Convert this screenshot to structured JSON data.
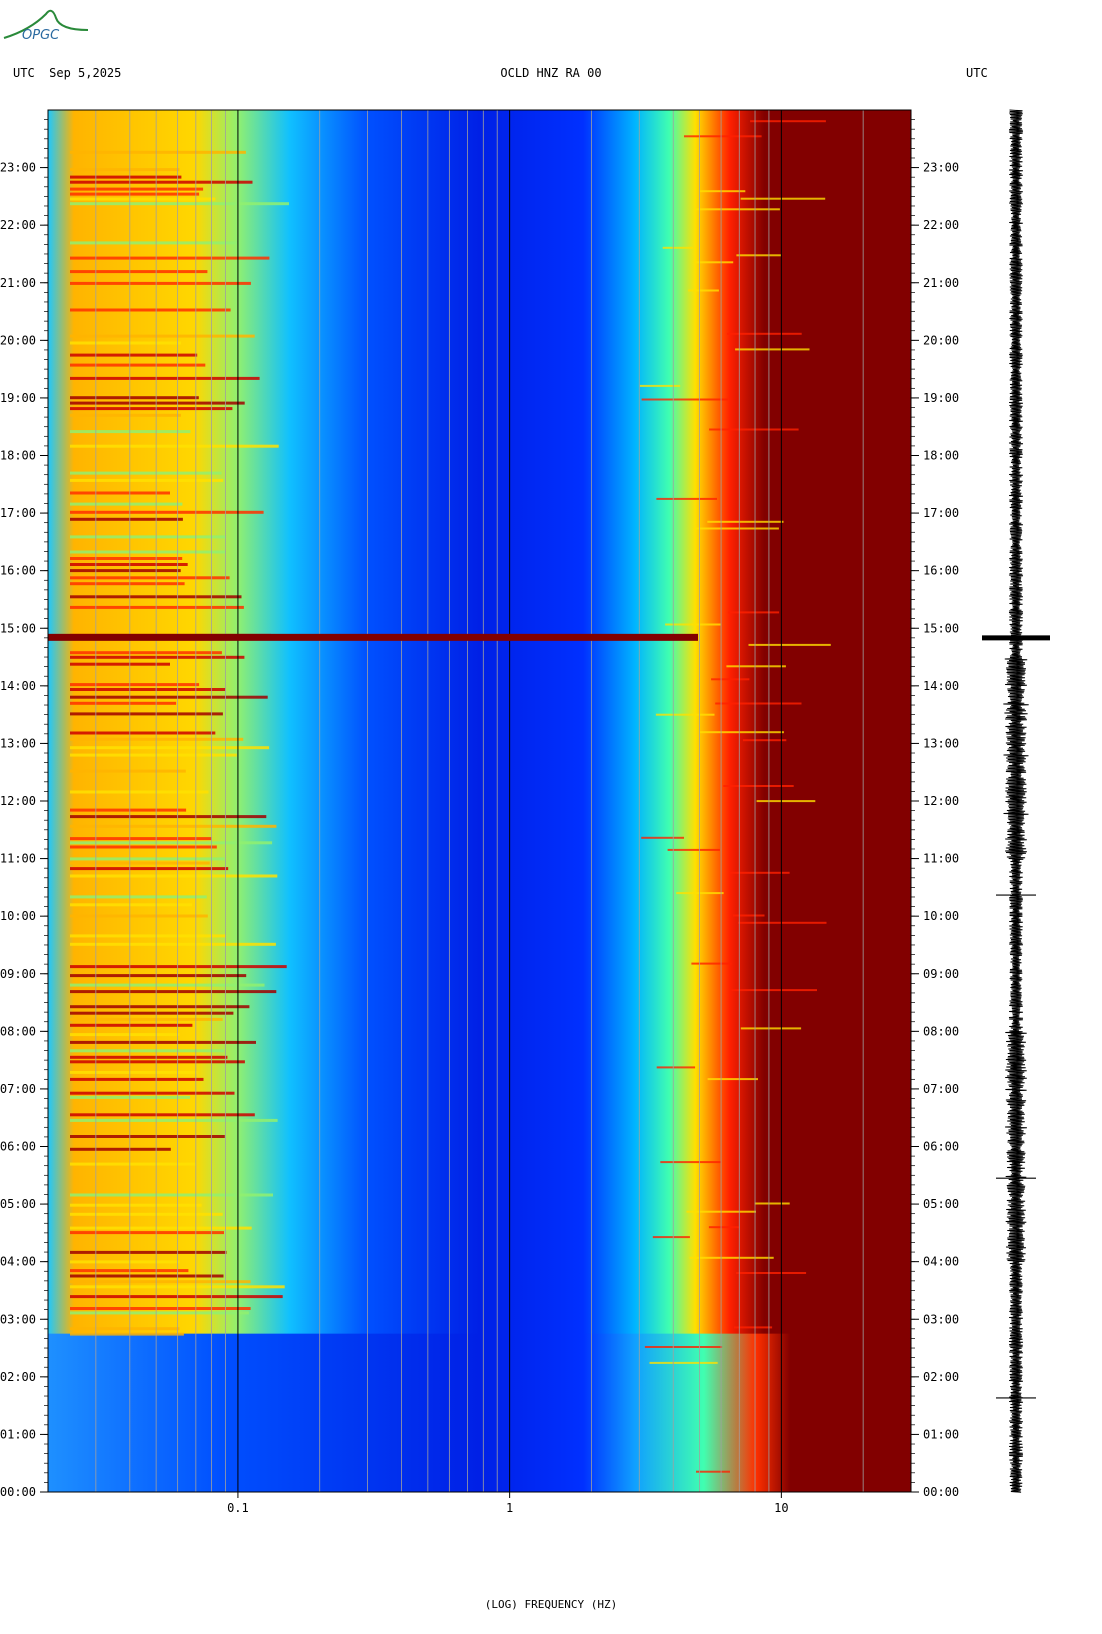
{
  "header": {
    "left": "UTC  Sep 5,2025",
    "center": "OCLD HNZ RA 00",
    "right": "UTC"
  },
  "logo": {
    "text": "OPGC",
    "color": "#2a8a3a"
  },
  "chart_data": {
    "type": "heatmap",
    "title": "OCLD HNZ RA 00",
    "date": "Sep 5,2025",
    "timezone": "UTC",
    "xlabel": "(LOG) FREQUENCY (HZ)",
    "xscale": "log",
    "xlim": [
      0.02,
      30
    ],
    "x_tick_labels": [
      {
        "value": 0.1,
        "label": "0.1"
      },
      {
        "value": 1,
        "label": "1"
      },
      {
        "value": 10,
        "label": "10"
      }
    ],
    "y_tick_labels": [
      "00:00",
      "01:00",
      "02:00",
      "03:00",
      "04:00",
      "05:00",
      "06:00",
      "07:00",
      "08:00",
      "09:00",
      "10:00",
      "11:00",
      "12:00",
      "13:00",
      "14:00",
      "15:00",
      "16:00",
      "17:00",
      "18:00",
      "19:00",
      "20:00",
      "21:00",
      "22:00",
      "23:00"
    ],
    "ylim_hours": [
      0,
      24
    ],
    "colormap": [
      "#000096",
      "#0000ff",
      "#0064ff",
      "#00c8ff",
      "#00ffc8",
      "#96ff64",
      "#ffff00",
      "#ffc800",
      "#ff6400",
      "#ff0000",
      "#820000"
    ],
    "notable_events": [
      {
        "time": "14:50",
        "note": "broadband energy"
      },
      {
        "time": "02:45",
        "note": "low-frequency onset"
      }
    ],
    "seismogram": {
      "color": "#000000",
      "spike_times": [
        "14:50",
        "01:38",
        "05:27",
        "10:22"
      ]
    }
  }
}
